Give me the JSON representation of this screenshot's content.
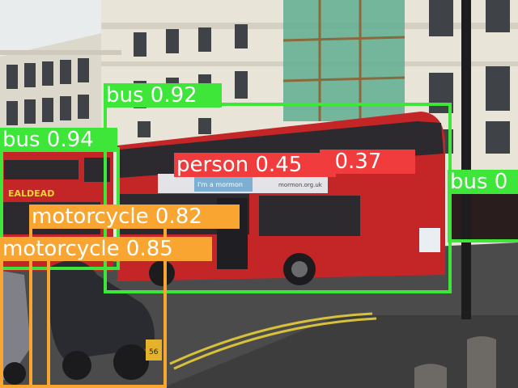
{
  "colors": {
    "bus": "#3ee63a",
    "motorcycle": "#f8a532",
    "person": "#f03c3c",
    "bus_body": "#c42628",
    "building": "#e9e4d8",
    "sky": "#e8eced",
    "road": "#4b4b4c"
  },
  "bus_ad_text": "I'm a mormon",
  "bus_ad_url": "mormon.org.uk",
  "bus_front_text": "EALDEAD",
  "bus_plate": "56",
  "detections": [
    {
      "label": "bus 0.92",
      "class": "bus"
    },
    {
      "label": "bus 0.94",
      "class": "bus"
    },
    {
      "label": "bus 0",
      "class": "bus"
    },
    {
      "label": "person 0.45",
      "class": "person"
    },
    {
      "label": "ı 0.37",
      "class": "person"
    },
    {
      "label": "motorcycle 0.82",
      "class": "motorcycle"
    },
    {
      "label": "motorcycle 0.85",
      "class": "motorcycle"
    }
  ]
}
